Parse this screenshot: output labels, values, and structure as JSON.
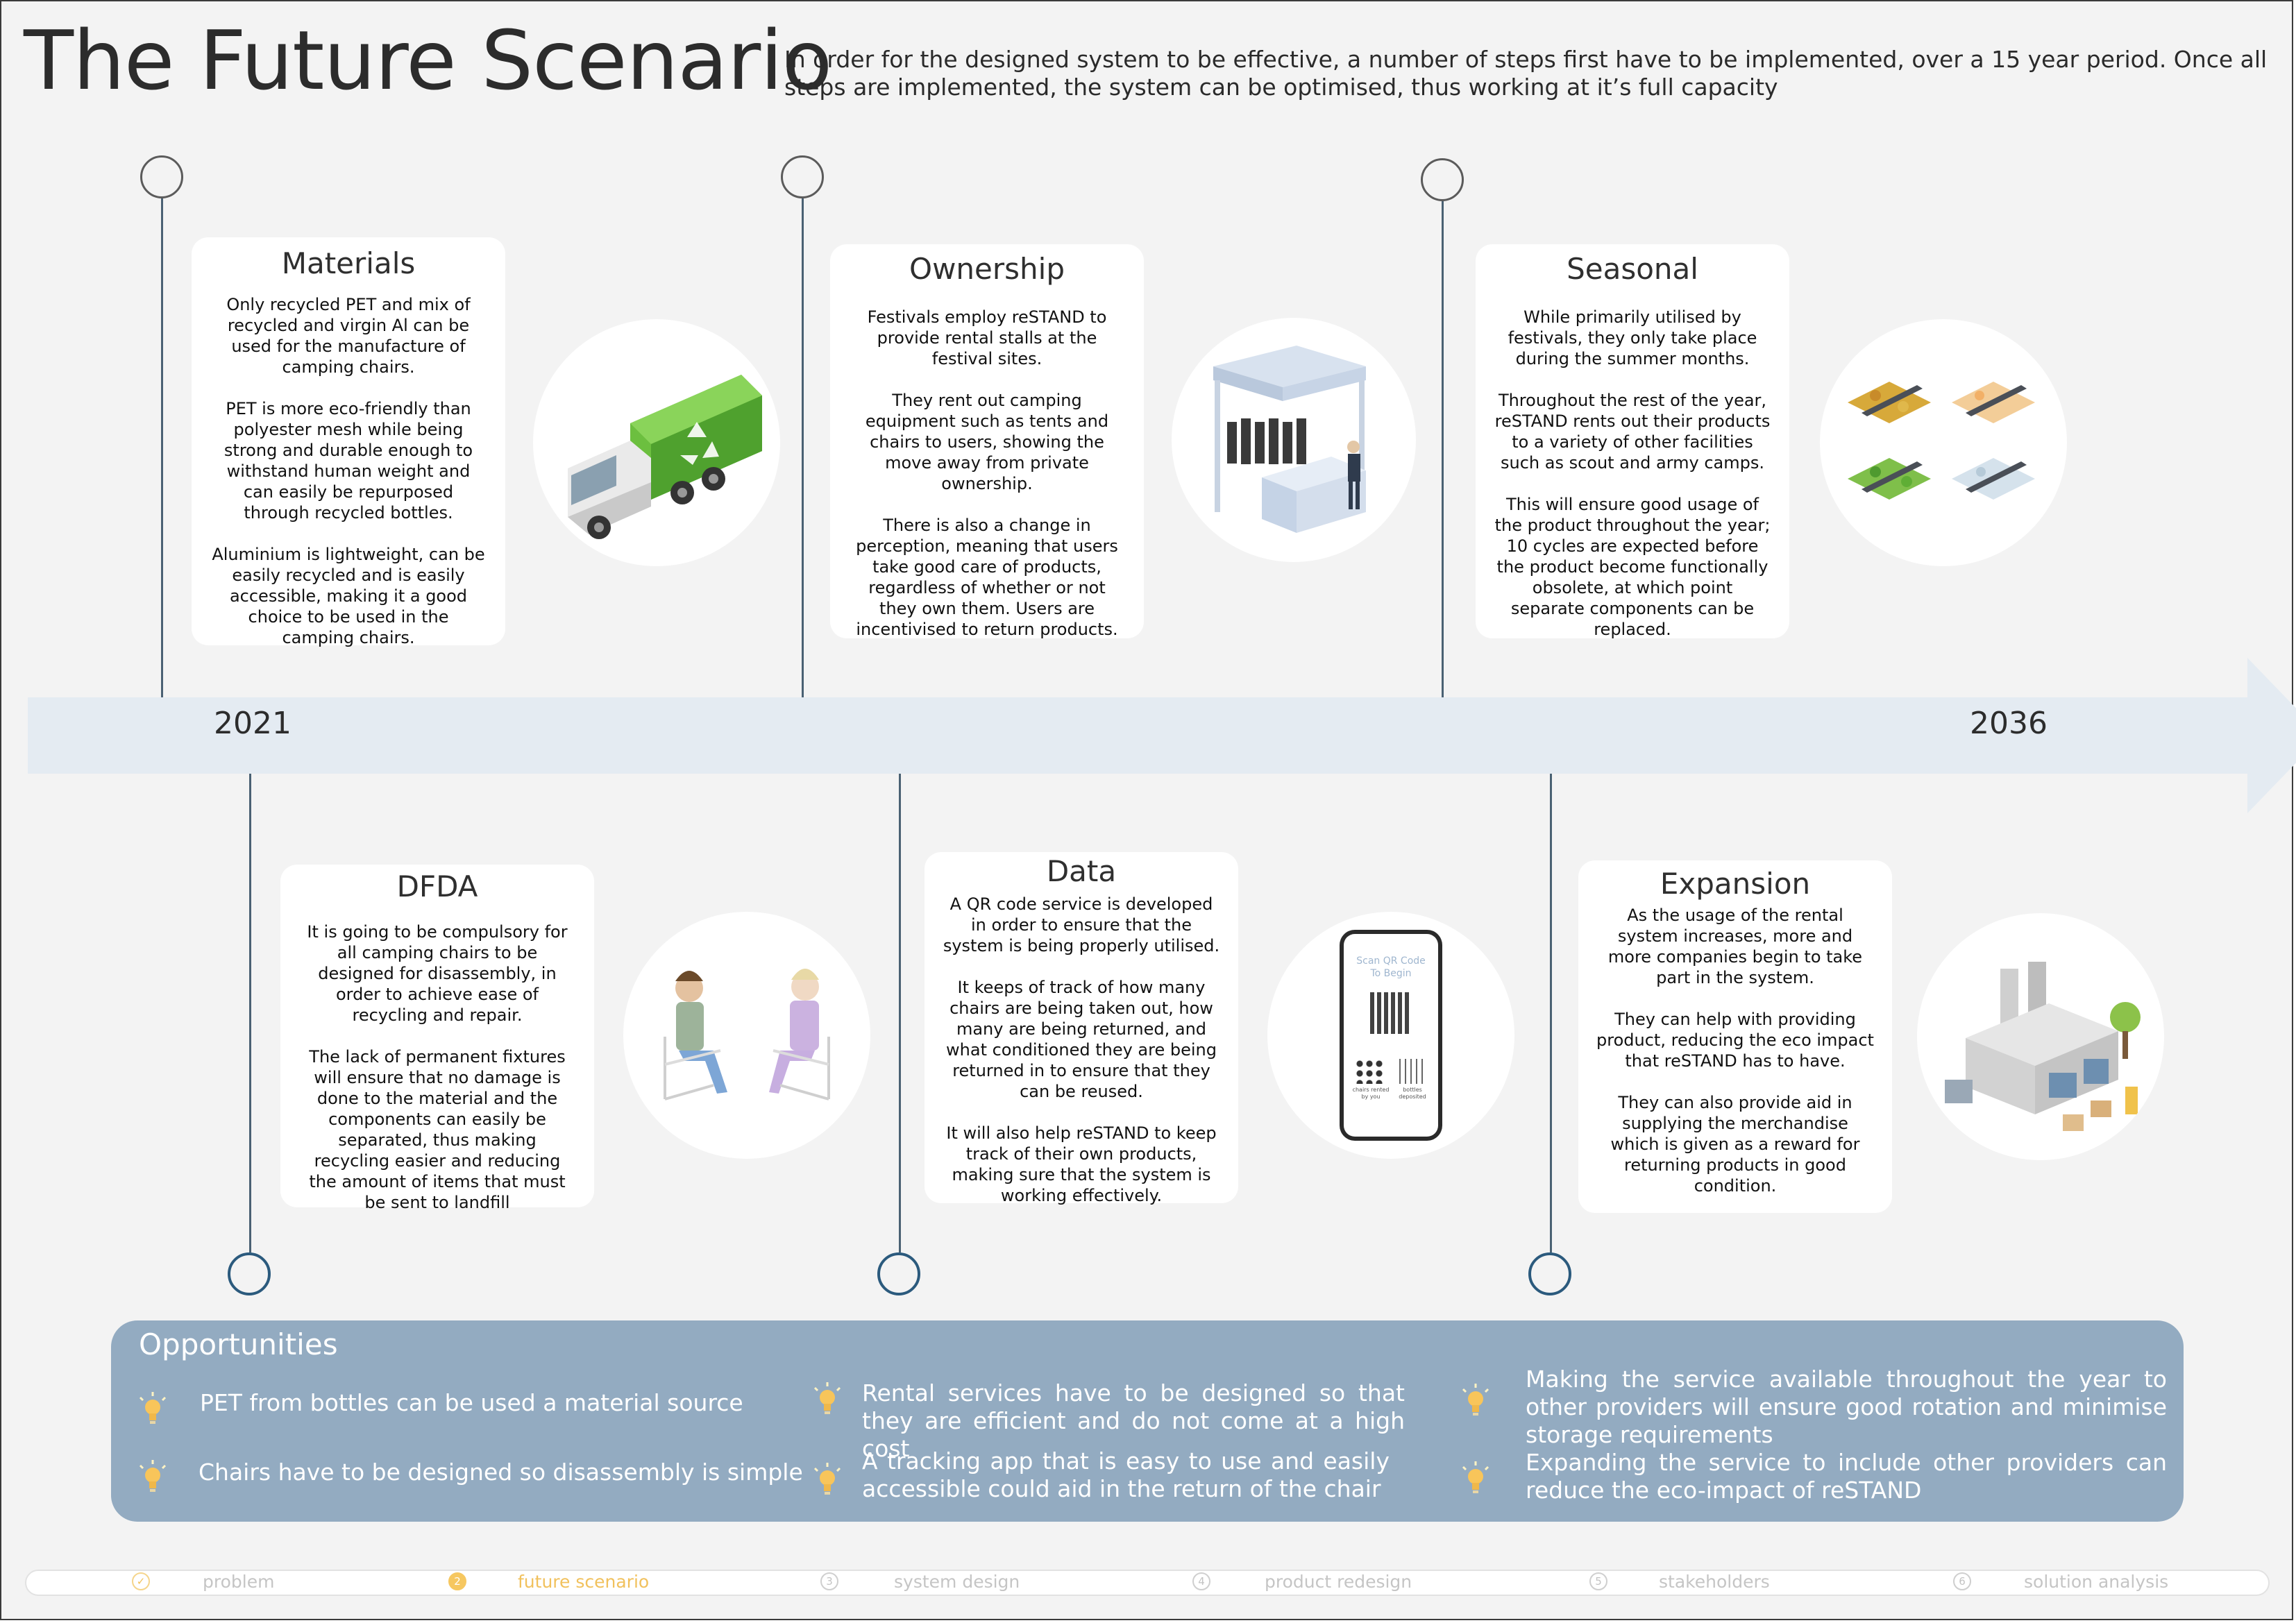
{
  "header": {
    "title": "The Future Scenario",
    "intro": "In order for the designed system to be effective, a number of steps first have to be implemented, over a 15 year period. Once all steps are implemented, the system can be optimised, thus working at it’s full capacity"
  },
  "timeline": {
    "start_year": "2021",
    "end_year": "2036",
    "steps": {
      "materials": {
        "title": "Materials",
        "paragraphs": [
          "Only recycled PET and mix of recycled and virgin Al can be used for the manufacture of camping chairs.",
          "PET is more eco-friendly than polyester mesh while being strong and durable enough to withstand human weight and can easily be repurposed through recycled bottles.",
          "Aluminium is lightweight, can be easily recycled and is easily accessible, making it a good choice to be used in the camping chairs."
        ],
        "illustration_icon": "recycling-truck-icon"
      },
      "ownership": {
        "title": "Ownership",
        "paragraphs": [
          "Festivals employ reSTAND  to provide rental stalls at the festival sites.",
          "They rent out camping equipment such as tents and chairs to users, showing the move away from private ownership.",
          "There is also a change in perception, meaning that users take good care of products, regardless of whether or not they own them. Users are incentivised to return products."
        ],
        "illustration_icon": "rental-stall-icon"
      },
      "seasonal": {
        "title": "Seasonal",
        "paragraphs": [
          "While primarily utilised by festivals, they only take place during the summer months.",
          "Throughout the rest of the year, reSTAND rents out their products to a variety of other facilities such as scout and army camps.",
          "This will ensure good usage of the product throughout the year; 10 cycles are expected before the product become functionally obsolete, at which point separate components can be replaced."
        ],
        "illustration_icon": "four-seasons-icon"
      },
      "dfda": {
        "title": "DFDA",
        "paragraphs": [
          "It is going to be compulsory for all camping chairs to be designed for disassembly, in order to achieve ease of recycling and repair.",
          "The lack of permanent fixtures will ensure that no damage is done to the material and the components can easily be separated, thus making recycling easier and reducing the amount of items that must be sent to landfill"
        ],
        "illustration_icon": "people-on-chairs-icon"
      },
      "data": {
        "title": "Data",
        "paragraphs": [
          "A QR code service is developed in order to ensure that the system is being properly utilised.",
          "It keeps of track of how many chairs are being taken out, how many are being returned, and what conditioned they are being returned in to ensure that they can be reused.",
          "It will also help reSTAND to keep track of their own products, making sure that the system is working effectively."
        ],
        "illustration_icon": "smartphone-qr-icon",
        "phone": {
          "scan_text": "Scan QR Code To Begin",
          "left_caption": "chairs rented by you",
          "right_caption": "bottles deposited"
        }
      },
      "expansion": {
        "title": "Expansion",
        "paragraphs": [
          "As the usage of the rental system increases, more and more companies begin to take part in the system.",
          "They can help with providing product, reducing the eco impact that reSTAND has to have.",
          "They can also provide aid in supplying the merchandise which is given as a reward for returning products in good condition."
        ],
        "illustration_icon": "factory-icon"
      }
    }
  },
  "opportunities": {
    "title": "Opportunities",
    "items": [
      "PET from bottles can be used a material source",
      "Chairs have to be designed so disassembly is simple",
      "Rental services have to be designed so that they are efficient and do not come at a high cost",
      "A tracking app that is easy to use and easily accessible could aid in the return of the chair",
      "Making the service available throughout the year to other providers will ensure good rotation and minimise storage requirements",
      "Expanding the service to include other providers can reduce the eco-impact of reSTAND"
    ],
    "bullet_icon": "lightbulb-icon"
  },
  "nav": {
    "items": [
      {
        "number": "✓",
        "label": "problem"
      },
      {
        "number": "2",
        "label": "future scenario"
      },
      {
        "number": "3",
        "label": "system design"
      },
      {
        "number": "4",
        "label": "product redesign"
      },
      {
        "number": "5",
        "label": "stakeholders"
      },
      {
        "number": "6",
        "label": "solution analysis"
      }
    ],
    "active_index": 1
  },
  "colors": {
    "background": "#f3f3f3",
    "timeline_band": "#e4ebf2",
    "opportunities_panel": "#93abc1",
    "marker_top": "#5b5b5b",
    "marker_bottom": "#2b5a7d",
    "nav_active": "#f1c15d"
  }
}
